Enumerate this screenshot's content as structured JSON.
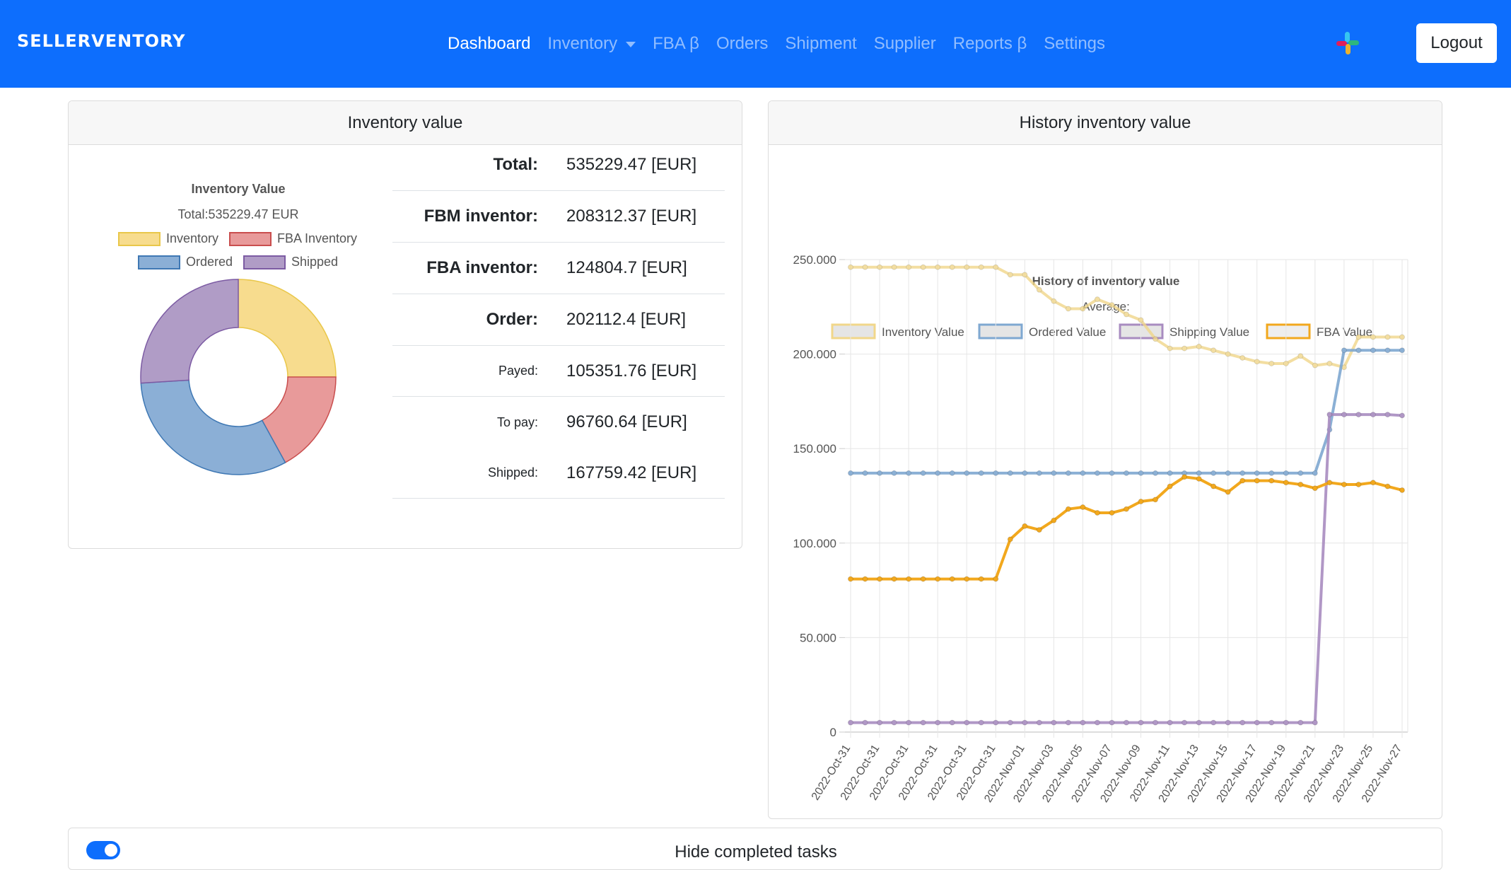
{
  "navbar": {
    "brand": "SELLERVENTORY",
    "items": [
      {
        "label": "Dashboard",
        "active": true
      },
      {
        "label": "Inventory",
        "dropdown": true
      },
      {
        "label": "FBA β"
      },
      {
        "label": "Orders"
      },
      {
        "label": "Shipment"
      },
      {
        "label": "Supplier"
      },
      {
        "label": "Reports β"
      },
      {
        "label": "Settings"
      }
    ],
    "icon": "slack-icon",
    "logout_label": "Logout"
  },
  "inventory_card": {
    "header": "Inventory value",
    "pie": {
      "title": "Inventory Value",
      "subtitle": "Total:535229.47 EUR",
      "legend": [
        {
          "label": "Inventory",
          "fill": "#f7dc8e",
          "stroke": "#e9c74a"
        },
        {
          "label": "FBA Inventory",
          "fill": "#e89a9a",
          "stroke": "#c94e4e"
        },
        {
          "label": "Ordered",
          "fill": "#8bafd6",
          "stroke": "#3f78b4"
        },
        {
          "label": "Shipped",
          "fill": "#b09cc6",
          "stroke": "#7c5ba3"
        }
      ],
      "values": [
        25,
        17,
        32,
        26
      ]
    },
    "totals": [
      {
        "label": "Total:",
        "value": "535229.47 [EUR]",
        "style": "big"
      },
      {
        "label": "FBM inventor:",
        "value": "208312.37 [EUR]",
        "style": "big"
      },
      {
        "label": "FBA inventor:",
        "value": "124804.7 [EUR]",
        "style": "big"
      },
      {
        "label": "Order:",
        "value": "202112.4 [EUR]",
        "style": "big"
      },
      {
        "label": "Payed:",
        "value": "105351.76 [EUR]",
        "style": "small"
      },
      {
        "label": "To pay:",
        "value": "96760.64 [EUR]",
        "style": "small"
      },
      {
        "label": "Shipped:",
        "value": "167759.42 [EUR]",
        "style": "small"
      }
    ]
  },
  "history_card": {
    "header": "History inventory value"
  },
  "chart_data": {
    "type": "line",
    "title": "History of inventory value",
    "subtitle": "Average:",
    "ylim": [
      0,
      250000
    ],
    "yticks": [
      "0",
      "50.000",
      "100.000",
      "150.000",
      "200.000",
      "250.000"
    ],
    "x": [
      "2022-Oct-31",
      "2022-Oct-31",
      "2022-Oct-31",
      "2022-Oct-31",
      "2022-Oct-31",
      "2022-Oct-31",
      "2022-Oct-31",
      "2022-Oct-31",
      "2022-Oct-31",
      "2022-Oct-31",
      "2022-Oct-31",
      "2022-Nov-01",
      "2022-Nov-02",
      "2022-Nov-03",
      "2022-Nov-04",
      "2022-Nov-05",
      "2022-Nov-06",
      "2022-Nov-07",
      "2022-Nov-08",
      "2022-Nov-09",
      "2022-Nov-10",
      "2022-Nov-11",
      "2022-Nov-12",
      "2022-Nov-13",
      "2022-Nov-14",
      "2022-Nov-15",
      "2022-Nov-16",
      "2022-Nov-17",
      "2022-Nov-18",
      "2022-Nov-19",
      "2022-Nov-20",
      "2022-Nov-21",
      "2022-Nov-22",
      "2022-Nov-23",
      "2022-Nov-24",
      "2022-Nov-25",
      "2022-Nov-26",
      "2022-Nov-27",
      "2022-Nov-28"
    ],
    "xticks_shown": [
      "2022-Oct-31",
      "2022-Oct-31",
      "2022-Oct-31",
      "2022-Oct-31",
      "2022-Oct-31",
      "2022-Oct-31",
      "2022-Nov-01",
      "2022-Nov-03",
      "2022-Nov-05",
      "2022-Nov-07",
      "2022-Nov-09",
      "2022-Nov-11",
      "2022-Nov-13",
      "2022-Nov-15",
      "2022-Nov-17",
      "2022-Nov-19",
      "2022-Nov-21",
      "2022-Nov-23",
      "2022-Nov-25",
      "2022-Nov-27"
    ],
    "legend_position": "top",
    "series": [
      {
        "name": "Inventory Value",
        "color": "#f1d78a",
        "legendFill": "#e5e5e5",
        "alpha": 0.8,
        "values": [
          246000,
          246000,
          246000,
          246000,
          246000,
          246000,
          246000,
          246000,
          246000,
          246000,
          246000,
          242000,
          242000,
          234000,
          228000,
          224000,
          224000,
          229000,
          226000,
          221000,
          218000,
          208000,
          203000,
          203000,
          204000,
          202000,
          200000,
          198000,
          196000,
          195000,
          195000,
          199000,
          194000,
          195000,
          193000,
          209000,
          209000,
          209000,
          209000
        ]
      },
      {
        "name": "Ordered Value",
        "color": "#7fa8d1",
        "legendFill": "#e5e5e5",
        "alpha": 0.9,
        "values": [
          137000,
          137000,
          137000,
          137000,
          137000,
          137000,
          137000,
          137000,
          137000,
          137000,
          137000,
          137000,
          137000,
          137000,
          137000,
          137000,
          137000,
          137000,
          137000,
          137000,
          137000,
          137000,
          137000,
          137000,
          137000,
          137000,
          137000,
          137000,
          137000,
          137000,
          137000,
          137000,
          137000,
          160000,
          202000,
          202000,
          202000,
          202000,
          202000
        ]
      },
      {
        "name": "Shipping Value",
        "color": "#a88cc0",
        "legendFill": "#e5e5e5",
        "alpha": 0.9,
        "values": [
          5000,
          5000,
          5000,
          5000,
          5000,
          5000,
          5000,
          5000,
          5000,
          5000,
          5000,
          5000,
          5000,
          5000,
          5000,
          5000,
          5000,
          5000,
          5000,
          5000,
          5000,
          5000,
          5000,
          5000,
          5000,
          5000,
          5000,
          5000,
          5000,
          5000,
          5000,
          5000,
          5000,
          168000,
          168000,
          168000,
          168000,
          168000,
          167500
        ]
      },
      {
        "name": "FBA Value",
        "color": "#f2a81d",
        "legendFill": "#eeeeee",
        "alpha": 1.0,
        "values": [
          81000,
          81000,
          81000,
          81000,
          81000,
          81000,
          81000,
          81000,
          81000,
          81000,
          81000,
          102000,
          109000,
          107000,
          112000,
          118000,
          119000,
          116000,
          116000,
          118000,
          122000,
          123000,
          130000,
          135000,
          134000,
          130000,
          127000,
          133000,
          133000,
          133000,
          132000,
          131000,
          129000,
          132000,
          131000,
          131000,
          132000,
          130000,
          128000
        ]
      }
    ]
  },
  "tasks_card": {
    "toggle_checked": true,
    "label": "Hide completed tasks"
  }
}
